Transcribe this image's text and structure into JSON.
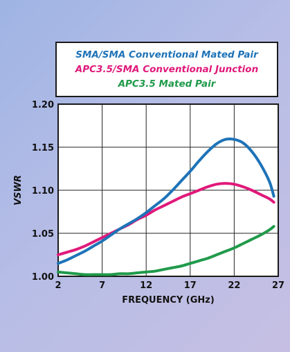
{
  "chart_data": {
    "type": "line",
    "xlabel": "FREQUENCY (GHz)",
    "ylabel": "VSWR",
    "xlim": [
      2,
      27
    ],
    "ylim": [
      1.0,
      1.2
    ],
    "xticks": [
      2,
      7,
      12,
      17,
      22,
      27
    ],
    "yticks": [
      "1.00",
      "1.05",
      "1.10",
      "1.15",
      "1.20"
    ],
    "grid": true,
    "legend_placement": "top",
    "series": [
      {
        "name": "SMA/SMA Conventional Mated Pair",
        "color": "#1e73b8",
        "x": [
          2,
          3,
          4,
          5,
          6,
          7,
          8,
          9,
          10,
          11,
          12,
          13,
          14,
          15,
          16,
          17,
          18,
          19,
          20,
          21,
          22,
          23,
          24,
          25,
          26,
          26.5
        ],
        "y": [
          1.015,
          1.019,
          1.024,
          1.029,
          1.035,
          1.041,
          1.048,
          1.055,
          1.061,
          1.067,
          1.074,
          1.082,
          1.09,
          1.1,
          1.111,
          1.122,
          1.134,
          1.145,
          1.154,
          1.159,
          1.159,
          1.155,
          1.145,
          1.13,
          1.11,
          1.093
        ]
      },
      {
        "name": "APC3.5/SMA Conventional Junction",
        "color": "#e0197a",
        "x": [
          2,
          3,
          4,
          5,
          6,
          7,
          8,
          9,
          10,
          11,
          12,
          13,
          14,
          15,
          16,
          17,
          18,
          19,
          20,
          21,
          22,
          23,
          24,
          25,
          26,
          26.5
        ],
        "y": [
          1.025,
          1.028,
          1.031,
          1.035,
          1.04,
          1.045,
          1.05,
          1.055,
          1.06,
          1.066,
          1.071,
          1.077,
          1.082,
          1.087,
          1.092,
          1.096,
          1.1,
          1.104,
          1.107,
          1.108,
          1.107,
          1.104,
          1.1,
          1.095,
          1.09,
          1.086
        ]
      },
      {
        "name": "APC3.5 Mated Pair",
        "color": "#1f9a4a",
        "x": [
          2,
          3,
          4,
          5,
          6,
          7,
          8,
          9,
          10,
          11,
          12,
          13,
          14,
          15,
          16,
          17,
          18,
          19,
          20,
          21,
          22,
          23,
          24,
          25,
          26,
          26.5
        ],
        "y": [
          1.005,
          1.004,
          1.003,
          1.002,
          1.002,
          1.002,
          1.002,
          1.003,
          1.003,
          1.004,
          1.005,
          1.006,
          1.008,
          1.01,
          1.012,
          1.015,
          1.018,
          1.021,
          1.025,
          1.029,
          1.033,
          1.038,
          1.043,
          1.048,
          1.054,
          1.058
        ]
      }
    ]
  }
}
